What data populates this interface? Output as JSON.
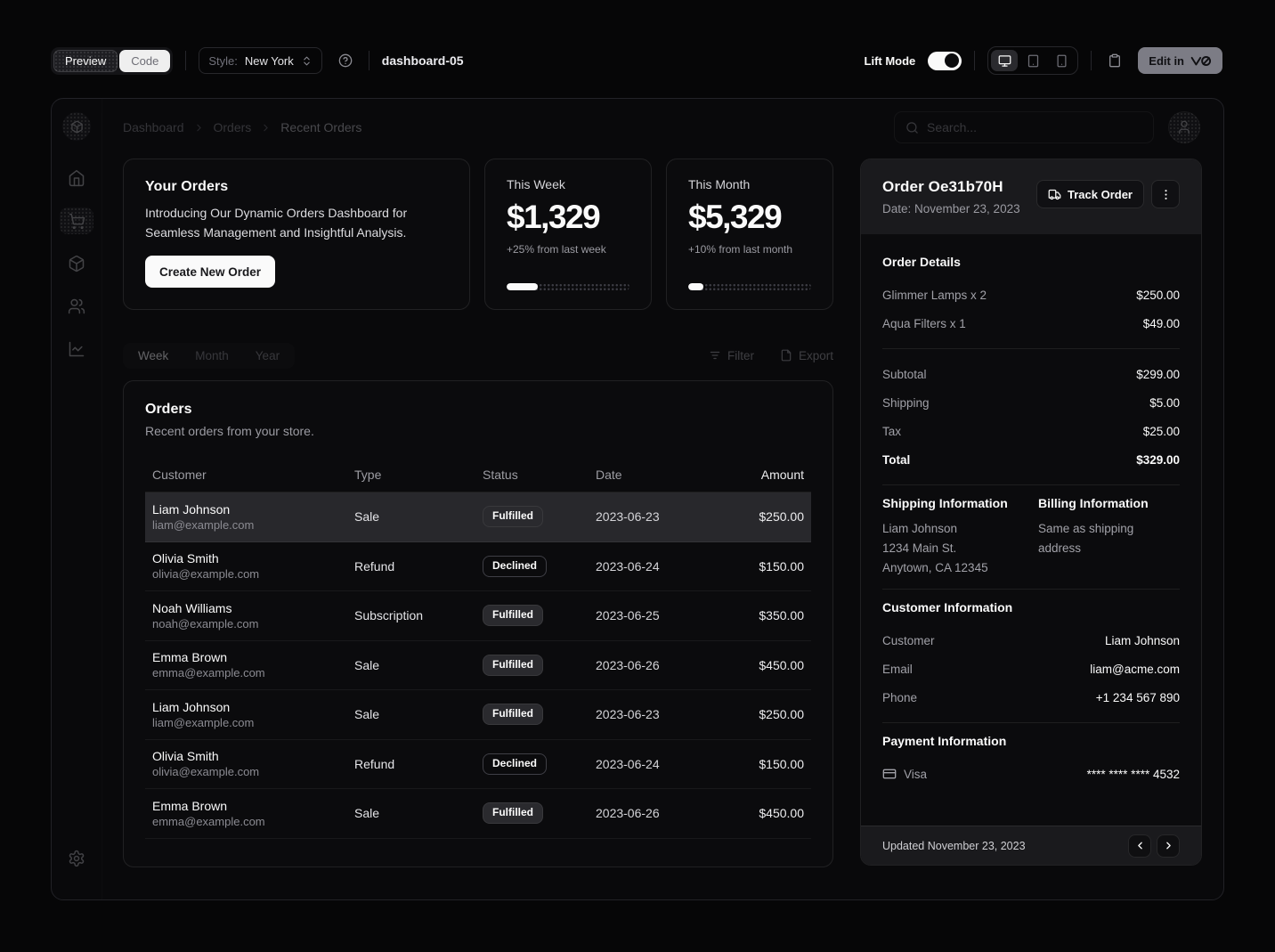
{
  "toolbar": {
    "preview_tab": "Preview",
    "code_tab": "Code",
    "style_label": "Style:",
    "style_value": "New York",
    "page_title": "dashboard-05",
    "lift_mode_label": "Lift Mode",
    "edit_button_label": "Edit in"
  },
  "breadcrumb": [
    "Dashboard",
    "Orders",
    "Recent Orders"
  ],
  "search": {
    "placeholder": "Search..."
  },
  "cards": {
    "intro": {
      "title": "Your Orders",
      "description": "Introducing Our Dynamic Orders Dashboard for Seamless Management and Insightful Analysis.",
      "button": "Create New Order"
    },
    "week": {
      "label": "This Week",
      "value": "$1,329",
      "delta": "+25% from last week",
      "progress_pct": 25
    },
    "month": {
      "label": "This Month",
      "value": "$5,329",
      "delta": "+10% from last month",
      "progress_pct": 12
    }
  },
  "period_tabs": [
    {
      "label": "Week"
    },
    {
      "label": "Month"
    },
    {
      "label": "Year"
    }
  ],
  "table_actions": {
    "filter": "Filter",
    "export": "Export"
  },
  "orders": {
    "title": "Orders",
    "subtitle": "Recent orders from your store.",
    "columns": [
      "Customer",
      "Type",
      "Status",
      "Date",
      "Amount"
    ],
    "rows": [
      {
        "name": "Liam Johnson",
        "email": "liam@example.com",
        "type": "Sale",
        "status": "Fulfilled",
        "date": "2023-06-23",
        "amount": "$250.00"
      },
      {
        "name": "Olivia Smith",
        "email": "olivia@example.com",
        "type": "Refund",
        "status": "Declined",
        "date": "2023-06-24",
        "amount": "$150.00"
      },
      {
        "name": "Noah Williams",
        "email": "noah@example.com",
        "type": "Subscription",
        "status": "Fulfilled",
        "date": "2023-06-25",
        "amount": "$350.00"
      },
      {
        "name": "Emma Brown",
        "email": "emma@example.com",
        "type": "Sale",
        "status": "Fulfilled",
        "date": "2023-06-26",
        "amount": "$450.00"
      },
      {
        "name": "Liam Johnson",
        "email": "liam@example.com",
        "type": "Sale",
        "status": "Fulfilled",
        "date": "2023-06-23",
        "amount": "$250.00"
      },
      {
        "name": "Olivia Smith",
        "email": "olivia@example.com",
        "type": "Refund",
        "status": "Declined",
        "date": "2023-06-24",
        "amount": "$150.00"
      },
      {
        "name": "Emma Brown",
        "email": "emma@example.com",
        "type": "Sale",
        "status": "Fulfilled",
        "date": "2023-06-26",
        "amount": "$450.00"
      }
    ]
  },
  "order_panel": {
    "title": "Order Oe31b70H",
    "date": "Date: November 23, 2023",
    "track_button": "Track Order",
    "details_title": "Order Details",
    "items": [
      {
        "label": "Glimmer Lamps x 2",
        "value": "$250.00"
      },
      {
        "label": "Aqua Filters x 1",
        "value": "$49.00"
      }
    ],
    "totals": [
      {
        "label": "Subtotal",
        "value": "$299.00"
      },
      {
        "label": "Shipping",
        "value": "$5.00"
      },
      {
        "label": "Tax",
        "value": "$25.00"
      },
      {
        "label": "Total",
        "value": "$329.00"
      }
    ],
    "shipping": {
      "title": "Shipping Information",
      "lines": [
        "Liam Johnson",
        "1234 Main St.",
        "Anytown, CA 12345"
      ]
    },
    "billing": {
      "title": "Billing Information",
      "text": "Same as shipping address"
    },
    "customer": {
      "title": "Customer Information",
      "rows": [
        {
          "label": "Customer",
          "value": "Liam Johnson"
        },
        {
          "label": "Email",
          "value": "liam@acme.com"
        },
        {
          "label": "Phone",
          "value": "+1 234 567 890"
        }
      ]
    },
    "payment": {
      "title": "Payment Information",
      "method": "Visa",
      "number": "**** **** **** 4532"
    },
    "footer": {
      "updated": "Updated November 23, 2023"
    }
  },
  "colors": {
    "background": "#060607",
    "card": "#0b0b0d",
    "muted_header": "#1a1a1d",
    "selected_row": "#28282c",
    "primary_text": "#fafafa",
    "muted_text": "#a1a1aa"
  }
}
